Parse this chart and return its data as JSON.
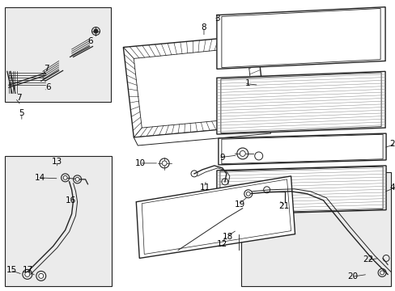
{
  "bg_color": "#ffffff",
  "line_color": "#222222",
  "fill_color": "#f5f5f5",
  "inset_fill": "#ebebeb",
  "hatch_color": "#555555"
}
